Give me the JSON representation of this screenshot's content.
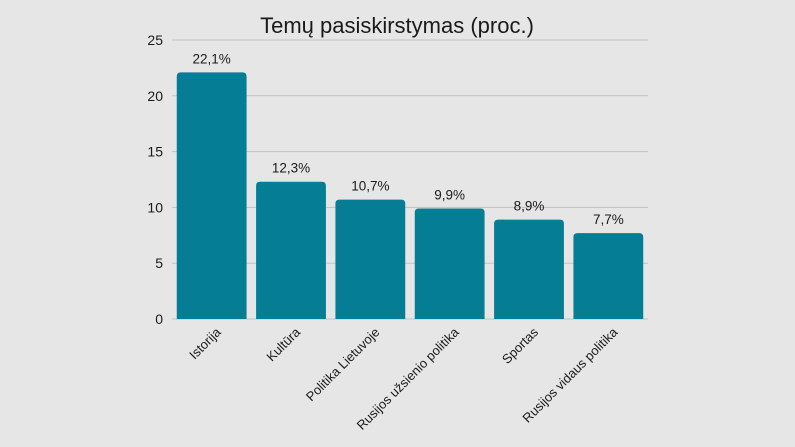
{
  "chart_data": {
    "type": "bar",
    "title": "Temų pasiskirstymas (proc.)",
    "xlabel": "",
    "ylabel": "",
    "categories": [
      "Istorija",
      "Kultūra",
      "Politika Lietuvoje",
      "Rusijos užsienio politika",
      "Sportas",
      "Rusijos vidaus politika"
    ],
    "values": [
      22.1,
      12.3,
      10.7,
      9.9,
      8.9,
      7.7
    ],
    "data_labels": [
      "22,1%",
      "12,3%",
      "10,7%",
      "9,9%",
      "8,9%",
      "7,7%"
    ],
    "ylim": [
      0,
      25
    ],
    "yticks": [
      0,
      5,
      10,
      15,
      20,
      25
    ],
    "ytick_labels": [
      "0",
      "5",
      "10",
      "15",
      "20",
      "25"
    ],
    "grid": true,
    "legend": "none",
    "colors": {
      "bar": "#057d95",
      "background": "#e6e6e6",
      "grid": "#c2c2c2"
    }
  }
}
